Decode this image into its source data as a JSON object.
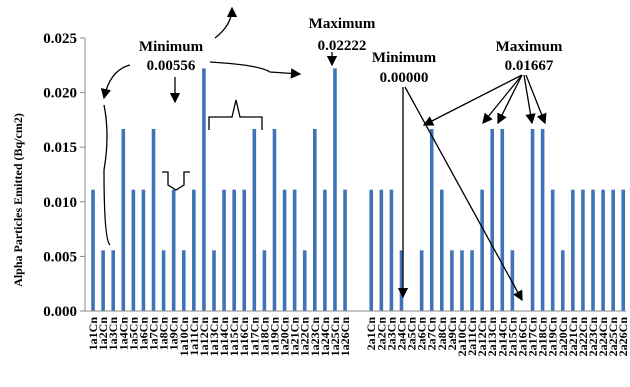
{
  "chart_data": {
    "type": "bar",
    "ylabel": "Alpha Particles Emitted (Bq/cm2)",
    "xlabel": "",
    "ylim": [
      0,
      0.025
    ],
    "yticks": [
      "0.000",
      "0.005",
      "0.010",
      "0.015",
      "0.020",
      "0.025"
    ],
    "grid": false,
    "bar_color": "#3f74b8",
    "groups": [
      {
        "categories": [
          "1a1Cn",
          "1a2Cn",
          "1a3Cn",
          "1a4Cn",
          "1a5Cn",
          "1a6Cn",
          "1a7Cn",
          "1a8Cn",
          "1a9Cn",
          "1a10Cn",
          "1a11Cn",
          "1a12Cn",
          "1a13Cn",
          "1a14Cn",
          "1a15Cn",
          "1a16Cn",
          "1a17Cn",
          "1a18Cn",
          "1a19Cn",
          "1a20Cn",
          "1a21Cn",
          "1a22Cn",
          "1a23Cn",
          "1a24Cn",
          "1a25Cn",
          "1a26Cn"
        ],
        "values": [
          0.01111,
          0.00556,
          0.00556,
          0.01667,
          0.01111,
          0.01111,
          0.01667,
          0.00556,
          0.01111,
          0.00556,
          0.01111,
          0.02222,
          0.00556,
          0.01111,
          0.01111,
          0.01111,
          0.01667,
          0.00556,
          0.01667,
          0.01111,
          0.01111,
          0.00556,
          0.01667,
          0.01111,
          0.02222,
          0.01111
        ]
      },
      {
        "categories": [
          "2a1Cn",
          "2a2Cn",
          "2a3Cn",
          "2a4Cn",
          "2a5Cn",
          "2a6Cn",
          "2a7Cn",
          "2a8Cn",
          "2a9Cn",
          "2a10Cn",
          "2a11Cn",
          "2a12Cn",
          "2a13Cn",
          "2a14Cn",
          "2a15Cn",
          "2a16Cn",
          "2a17Cn",
          "2a18Cn",
          "2a19Cn",
          "2a20Cn",
          "2a21Cn",
          "2a22Cn",
          "2a23Cn",
          "2a24Cn",
          "2a25Cn",
          "2a26Cn"
        ],
        "values": [
          0.01111,
          0.01111,
          0.01111,
          0.00556,
          0.0,
          0.00556,
          0.01667,
          0.01111,
          0.00556,
          0.00556,
          0.00556,
          0.01111,
          0.01667,
          0.01667,
          0.00556,
          0.0,
          0.01667,
          0.01667,
          0.01111,
          0.00556,
          0.01111,
          0.01111,
          0.01111,
          0.01111,
          0.01111,
          0.01111
        ]
      }
    ],
    "annotations": [
      {
        "label": "Minimum",
        "value": "0.00556"
      },
      {
        "label": "Maximum",
        "value": "0.02222"
      },
      {
        "label": "Minimum",
        "value": "0.00000"
      },
      {
        "label": "Maximum",
        "value": "0.01667"
      }
    ]
  }
}
